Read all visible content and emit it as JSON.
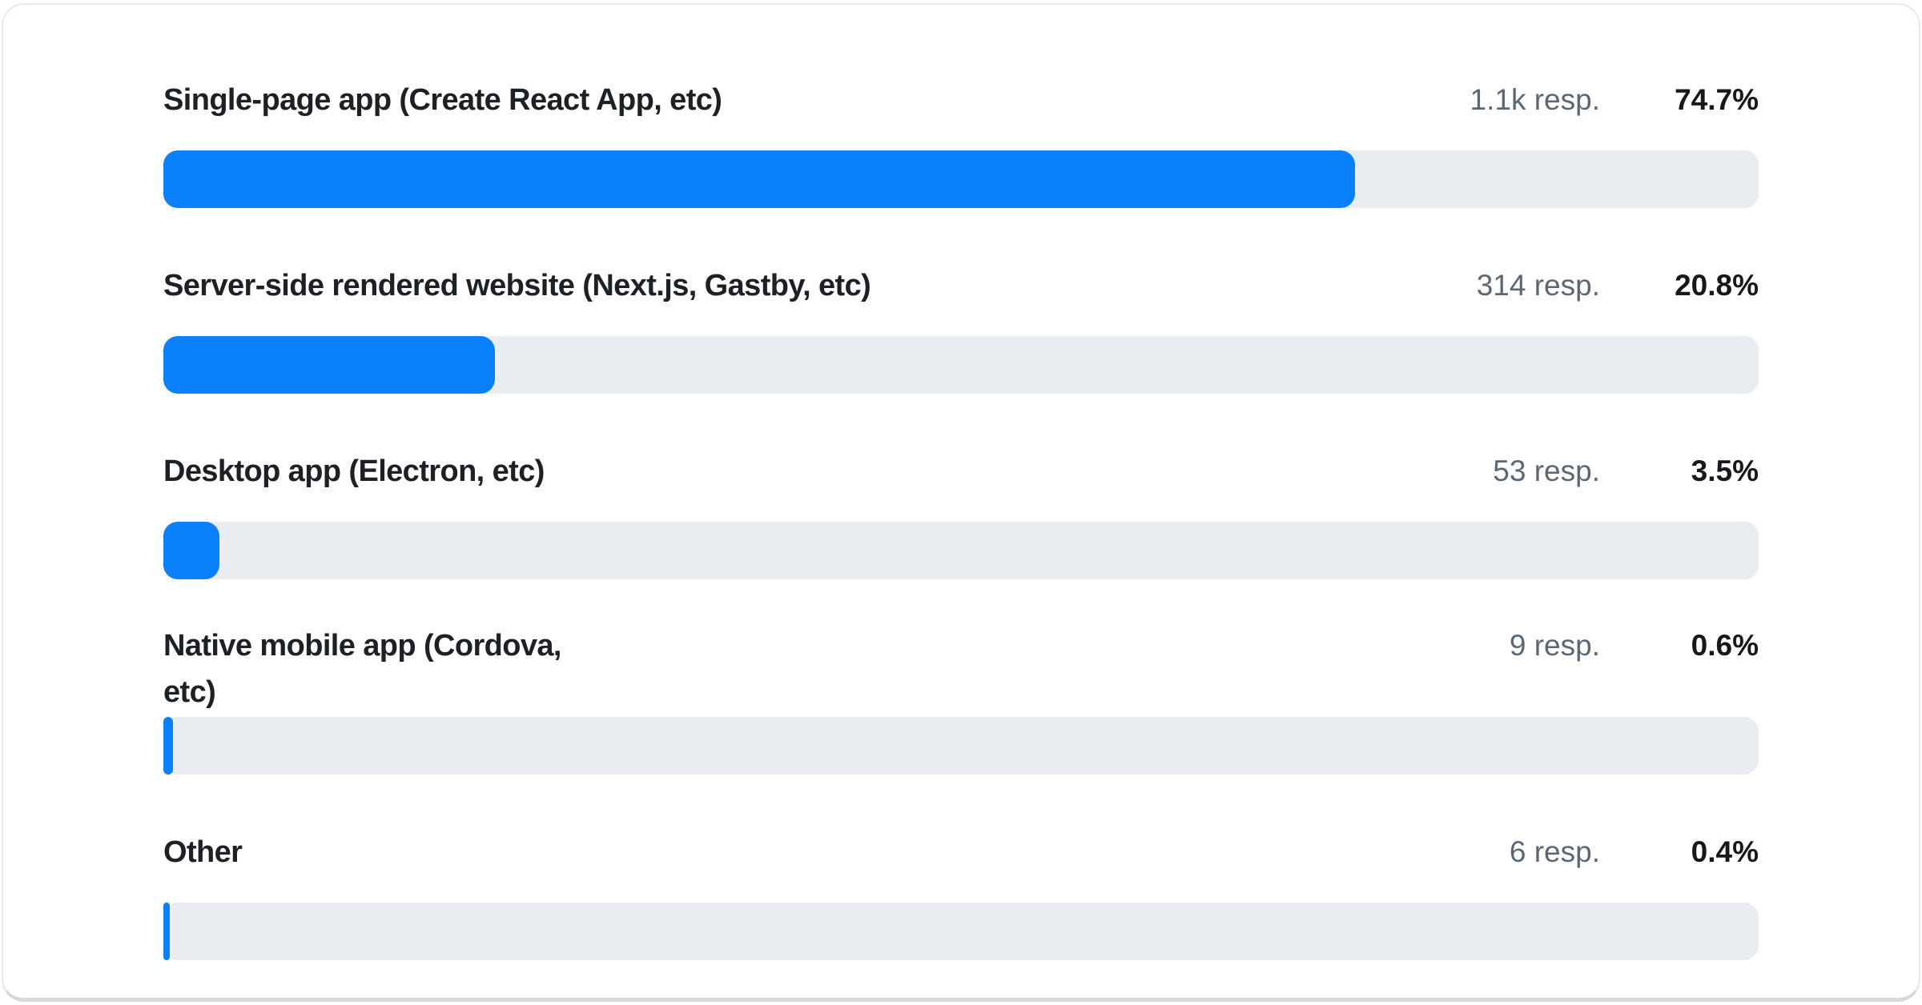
{
  "chart_data": {
    "type": "bar",
    "orientation": "horizontal",
    "title": "",
    "xlabel": "",
    "ylabel": "",
    "unit": "%",
    "xlim": [
      0,
      100
    ],
    "grid": false,
    "legend": "none",
    "categories": [
      "Single-page app (Create React App, etc)",
      "Server-side rendered website (Next.js, Gastby, etc)",
      "Desktop app (Electron, etc)",
      "Native mobile app (Cordova, etc)",
      "Other"
    ],
    "values": [
      74.7,
      20.8,
      3.5,
      0.6,
      0.4
    ],
    "response_counts": [
      "1.1k",
      "314",
      "53",
      "9",
      "6"
    ],
    "bar_color": "#0a80fa",
    "track_color": "#e9ecf0"
  },
  "rows": [
    {
      "label": "Single-page app (Create React App, etc)",
      "responses": "1.1k resp.",
      "percent": "74.7%",
      "value": 74.7
    },
    {
      "label": "Server-side rendered website (Next.js, Gastby, etc)",
      "responses": "314 resp.",
      "percent": "20.8%",
      "value": 20.8
    },
    {
      "label": "Desktop app (Electron, etc)",
      "responses": "53 resp.",
      "percent": "3.5%",
      "value": 3.5
    },
    {
      "label": "Native mobile app (Cordova,\netc)",
      "responses": "9 resp.",
      "percent": "0.6%",
      "value": 0.6
    },
    {
      "label": "Other",
      "responses": "6 resp.",
      "percent": "0.4%",
      "value": 0.4
    }
  ],
  "colors": {
    "bar": "#0a80fa",
    "track": "#e9ecf0",
    "label_text": "#1d2024",
    "responses_text": "#5c6773",
    "percent_text": "#16181b",
    "card_border": "#e5e8ea",
    "card_border_bottom": "#d5d9dd",
    "card_background": "#ffffff"
  }
}
